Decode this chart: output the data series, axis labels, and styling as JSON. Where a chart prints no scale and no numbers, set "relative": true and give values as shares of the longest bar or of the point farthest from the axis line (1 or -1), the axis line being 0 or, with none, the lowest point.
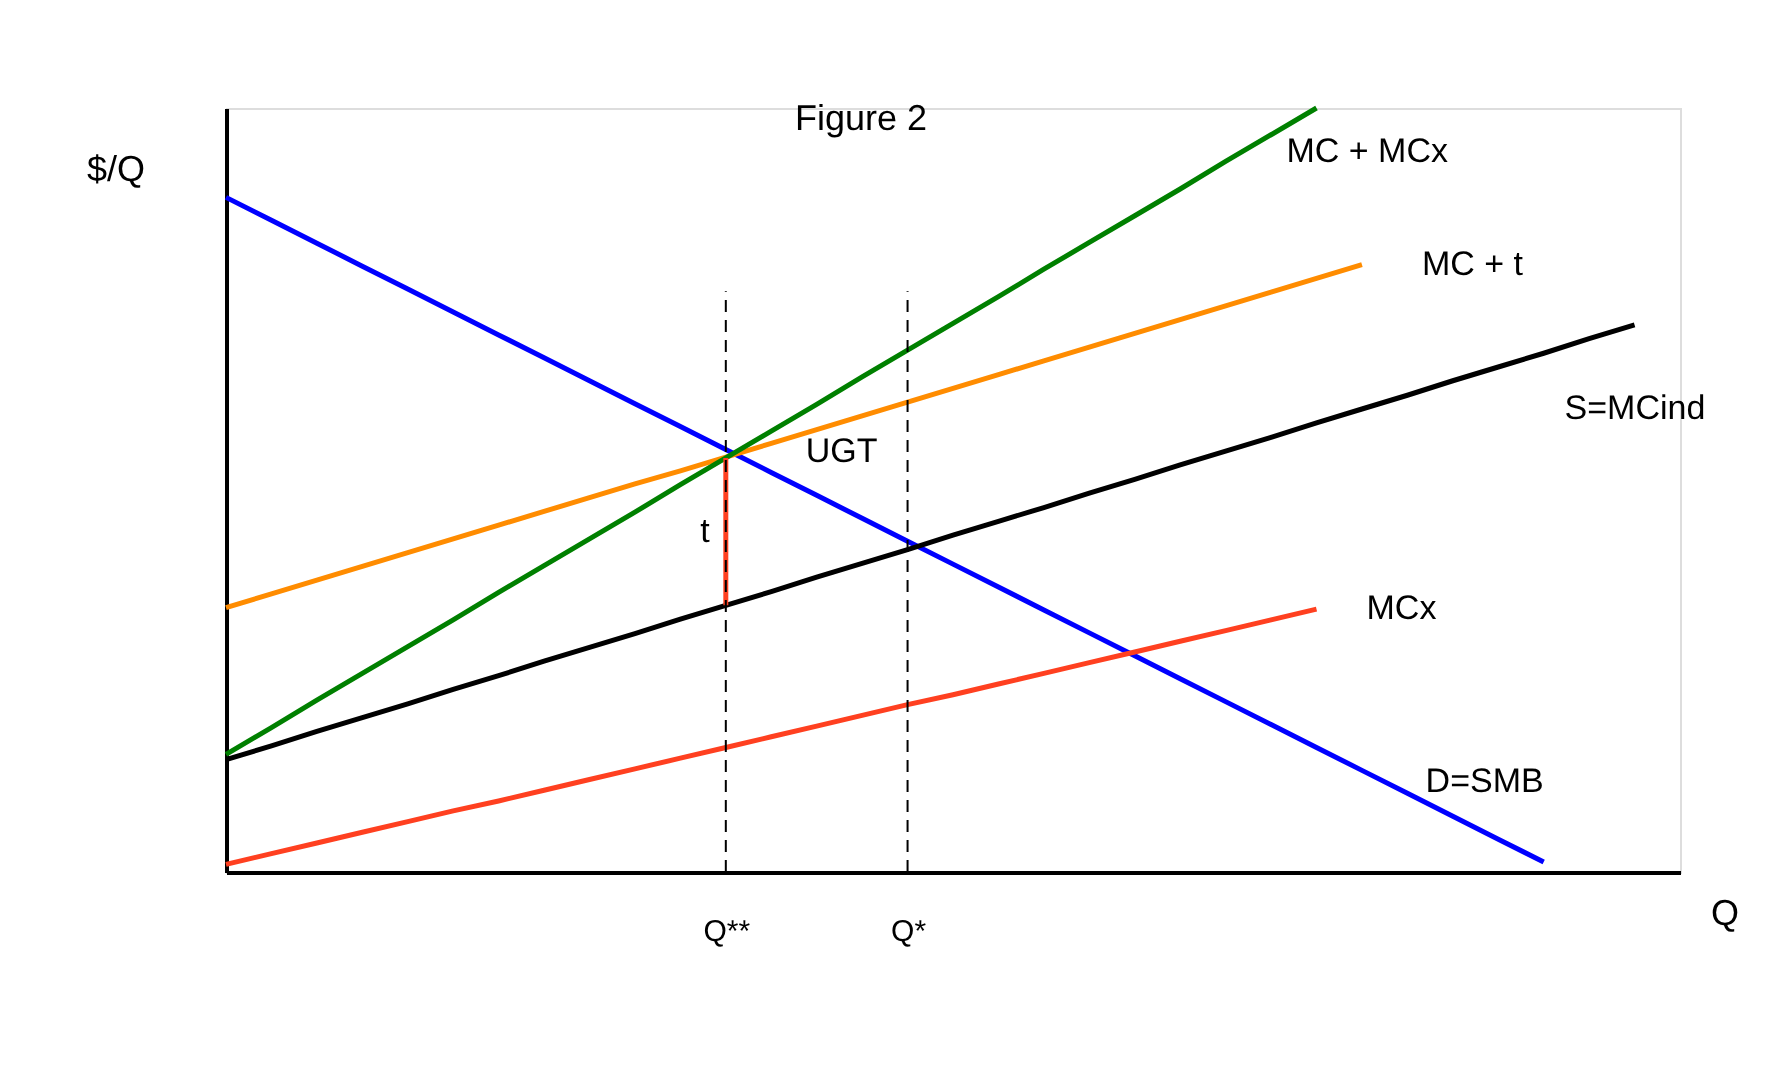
{
  "chart_data": {
    "type": "line",
    "title": "Figure 2",
    "xlabel": "Q",
    "ylabel": "$/Q",
    "relative": true,
    "tick_labels": "x",
    "legend": false,
    "marker": "none",
    "line_style": "solid",
    "categories": [
      null,
      null,
      null,
      null,
      null,
      null,
      null,
      null,
      null,
      null,
      null,
      "Q**",
      null,
      null,
      null,
      "Q*",
      null,
      null,
      null,
      null,
      null,
      null,
      null,
      null,
      null,
      null,
      null,
      null,
      null,
      null,
      null,
      null,
      null
    ],
    "series": [
      {
        "name": "D=SMB",
        "color": "#0000ff",
        "values": [
          0.883,
          0.853,
          0.823,
          0.793,
          0.763,
          0.733,
          0.703,
          0.673,
          0.643,
          0.613,
          0.583,
          0.553,
          0.523,
          0.493,
          0.463,
          0.433,
          0.403,
          0.373,
          0.343,
          0.313,
          0.283,
          0.253,
          0.223,
          0.193,
          0.163,
          0.133,
          0.103,
          0.073,
          0.043,
          0.013,
          null,
          null,
          null
        ]
      },
      {
        "name": "S=MCind",
        "color": "#000000",
        "values": [
          0.147,
          0.165,
          0.184,
          0.202,
          0.22,
          0.239,
          0.257,
          0.276,
          0.294,
          0.312,
          0.331,
          0.349,
          0.367,
          0.386,
          0.404,
          0.422,
          0.441,
          0.459,
          0.477,
          0.496,
          0.514,
          0.533,
          0.551,
          0.569,
          0.588,
          0.606,
          0.624,
          0.643,
          0.661,
          0.679,
          0.698,
          0.716,
          null
        ]
      },
      {
        "name": "MC + t",
        "color": "#ff8c00",
        "values": [
          0.346,
          0.364,
          0.382,
          0.4,
          0.418,
          0.436,
          0.454,
          0.472,
          0.49,
          0.508,
          0.525,
          0.543,
          0.561,
          0.579,
          0.597,
          0.615,
          0.633,
          0.651,
          0.669,
          0.687,
          0.705,
          0.723,
          0.741,
          0.759,
          0.777,
          0.795,
          null,
          null,
          null,
          null,
          null,
          null,
          null
        ]
      },
      {
        "name": "MC + MCx",
        "color": "#008000",
        "values": [
          0.154,
          0.189,
          0.225,
          0.26,
          0.295,
          0.33,
          0.366,
          0.401,
          0.436,
          0.471,
          0.507,
          0.542,
          0.577,
          0.612,
          0.648,
          0.683,
          0.718,
          0.753,
          0.789,
          0.824,
          0.859,
          0.894,
          0.93,
          0.965,
          1.0,
          null,
          null,
          null,
          null,
          null,
          null,
          null,
          null
        ]
      },
      {
        "name": "MCx",
        "color": "#ff4020",
        "values": [
          0.01,
          0.024,
          0.038,
          0.052,
          0.066,
          0.08,
          0.093,
          0.107,
          0.121,
          0.135,
          0.149,
          0.163,
          0.177,
          0.191,
          0.205,
          0.219,
          0.232,
          0.246,
          0.26,
          0.274,
          0.288,
          0.302,
          0.316,
          0.33,
          0.344,
          null,
          null,
          null,
          null,
          null,
          null,
          null,
          null
        ]
      },
      {
        "name": "t",
        "color": "#ff4020",
        "x": [
          "Q**",
          "Q**"
        ],
        "values": [
          0.349,
          0.542
        ]
      }
    ],
    "ref_lines": [
      {
        "axis": "x",
        "value": "Q**",
        "color": "#000000",
        "line_style": "dashed"
      },
      {
        "axis": "x",
        "value": "Q*",
        "color": "#000000",
        "line_style": "dashed"
      }
    ],
    "annotations": [
      {
        "text": "UGT",
        "x": "Q**",
        "y": 0.542
      }
    ]
  }
}
